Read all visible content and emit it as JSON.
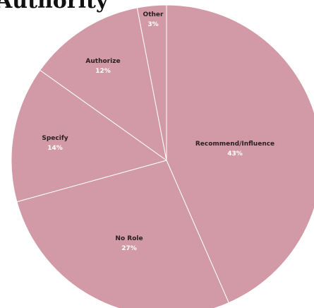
{
  "chart_data": {
    "type": "pie",
    "title": "Authority",
    "slice_color": "#d19aa6",
    "border_color": "#ffffff",
    "slices": [
      {
        "label": "Recommend/Influence",
        "value": 43,
        "pct_label": "43%"
      },
      {
        "label": "No Role",
        "value": 27,
        "pct_label": "27%"
      },
      {
        "label": "Specify",
        "value": 14,
        "pct_label": "14%"
      },
      {
        "label": "Authorize",
        "value": 12,
        "pct_label": "12%"
      },
      {
        "label": "Other",
        "value": 3,
        "pct_label": "3%"
      }
    ]
  }
}
